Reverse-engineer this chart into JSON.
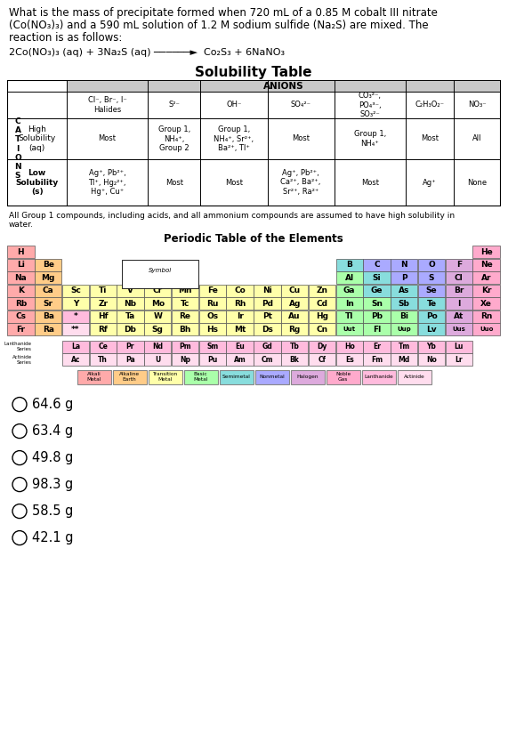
{
  "question_text_lines": [
    "What is the mass of precipitate formed when 720 mL of a 0.85 M cobalt III nitrate",
    "(Co(NO₃)₃) and a 590 mL solution of 1.2 M sodium sulfide (Na₂S) are mixed. The",
    "reaction is as follows:"
  ],
  "reaction_line": "2Co(NO₃)₃ (aq) + 3Na₂S (aq) ──────►  Co₂S₃ + 6NaNO₃",
  "solubility_title": "Solubility Table",
  "anions_header": "ANIONS",
  "col_headers": [
    "Cl⁻, Br⁻, I⁻\nHalides",
    "S²⁻",
    "OH⁻",
    "SO₄²⁻",
    "CO₃²⁻,\nPO₄³⁻,\nSO₃²⁻",
    "C₂H₃O₂⁻",
    "NO₃⁻"
  ],
  "row1_label": "High\nSolubility\n(aq)",
  "row2_label": "Low\nSolubility\n(s)",
  "row1_data": [
    "Most",
    "Group 1,\nNH₄⁺,\nGroup 2",
    "Group 1,\nNH₄⁺, Sr²⁺,\nBa²⁺, Tl⁺",
    "Most",
    "Group 1,\nNH₄⁺",
    "Most",
    "All"
  ],
  "row2_data": [
    "Ag⁺, Pb²⁺,\nTl⁺, Hg₂²⁺,\nHg⁺, Cu⁺",
    "Most",
    "Most",
    "Ag⁺, Pb²⁺,\nCa²⁺, Ba²⁺,\nSr²⁺, Ra²⁺",
    "Most",
    "Ag⁺",
    "None"
  ],
  "footnote_line1": "All Group 1 compounds, including acids, and all ammonium compounds are assumed to have high solubility in",
  "footnote_line2": "water.",
  "answer_options": [
    "64.6 g",
    "63.4 g",
    "49.8 g",
    "98.3 g",
    "58.5 g",
    "42.1 g"
  ],
  "bg_color": "#ffffff",
  "colors": {
    "alkali": "#ffaaaa",
    "alkaline": "#ffcc88",
    "transition": "#ffffaa",
    "basic": "#aaffaa",
    "semimetal": "#88dddd",
    "nonmetal": "#aaaaff",
    "halogen": "#ddaadd",
    "noble": "#ffaacc",
    "lanthanide": "#ffbbdd",
    "actinide": "#ffddee",
    "default": "#ffffff"
  },
  "elements": [
    [
      0,
      0,
      "H",
      "alkali"
    ],
    [
      0,
      17,
      "He",
      "noble"
    ],
    [
      1,
      0,
      "Li",
      "alkali"
    ],
    [
      1,
      1,
      "Be",
      "alkaline"
    ],
    [
      1,
      12,
      "B",
      "semimetal"
    ],
    [
      1,
      13,
      "C",
      "nonmetal"
    ],
    [
      1,
      14,
      "N",
      "nonmetal"
    ],
    [
      1,
      15,
      "O",
      "nonmetal"
    ],
    [
      1,
      16,
      "F",
      "halogen"
    ],
    [
      1,
      17,
      "Ne",
      "noble"
    ],
    [
      2,
      0,
      "Na",
      "alkali"
    ],
    [
      2,
      1,
      "Mg",
      "alkaline"
    ],
    [
      2,
      12,
      "Al",
      "basic"
    ],
    [
      2,
      13,
      "Si",
      "semimetal"
    ],
    [
      2,
      14,
      "P",
      "nonmetal"
    ],
    [
      2,
      15,
      "S",
      "nonmetal"
    ],
    [
      2,
      16,
      "Cl",
      "halogen"
    ],
    [
      2,
      17,
      "Ar",
      "noble"
    ],
    [
      3,
      0,
      "K",
      "alkali"
    ],
    [
      3,
      1,
      "Ca",
      "alkaline"
    ],
    [
      3,
      2,
      "Sc",
      "transition"
    ],
    [
      3,
      3,
      "Ti",
      "transition"
    ],
    [
      3,
      4,
      "V",
      "transition"
    ],
    [
      3,
      5,
      "Cr",
      "transition"
    ],
    [
      3,
      6,
      "Mn",
      "transition"
    ],
    [
      3,
      7,
      "Fe",
      "transition"
    ],
    [
      3,
      8,
      "Co",
      "transition"
    ],
    [
      3,
      9,
      "Ni",
      "transition"
    ],
    [
      3,
      10,
      "Cu",
      "transition"
    ],
    [
      3,
      11,
      "Zn",
      "transition"
    ],
    [
      3,
      12,
      "Ga",
      "basic"
    ],
    [
      3,
      13,
      "Ge",
      "semimetal"
    ],
    [
      3,
      14,
      "As",
      "semimetal"
    ],
    [
      3,
      15,
      "Se",
      "nonmetal"
    ],
    [
      3,
      16,
      "Br",
      "halogen"
    ],
    [
      3,
      17,
      "Kr",
      "noble"
    ],
    [
      4,
      0,
      "Rb",
      "alkali"
    ],
    [
      4,
      1,
      "Sr",
      "alkaline"
    ],
    [
      4,
      2,
      "Y",
      "transition"
    ],
    [
      4,
      3,
      "Zr",
      "transition"
    ],
    [
      4,
      4,
      "Nb",
      "transition"
    ],
    [
      4,
      5,
      "Mo",
      "transition"
    ],
    [
      4,
      6,
      "Tc",
      "transition"
    ],
    [
      4,
      7,
      "Ru",
      "transition"
    ],
    [
      4,
      8,
      "Rh",
      "transition"
    ],
    [
      4,
      9,
      "Pd",
      "transition"
    ],
    [
      4,
      10,
      "Ag",
      "transition"
    ],
    [
      4,
      11,
      "Cd",
      "transition"
    ],
    [
      4,
      12,
      "In",
      "basic"
    ],
    [
      4,
      13,
      "Sn",
      "basic"
    ],
    [
      4,
      14,
      "Sb",
      "semimetal"
    ],
    [
      4,
      15,
      "Te",
      "semimetal"
    ],
    [
      4,
      16,
      "I",
      "halogen"
    ],
    [
      4,
      17,
      "Xe",
      "noble"
    ],
    [
      5,
      0,
      "Cs",
      "alkali"
    ],
    [
      5,
      1,
      "Ba",
      "alkaline"
    ],
    [
      5,
      2,
      "*",
      "lanthanide"
    ],
    [
      5,
      3,
      "Hf",
      "transition"
    ],
    [
      5,
      4,
      "Ta",
      "transition"
    ],
    [
      5,
      5,
      "W",
      "transition"
    ],
    [
      5,
      6,
      "Re",
      "transition"
    ],
    [
      5,
      7,
      "Os",
      "transition"
    ],
    [
      5,
      8,
      "Ir",
      "transition"
    ],
    [
      5,
      9,
      "Pt",
      "transition"
    ],
    [
      5,
      10,
      "Au",
      "transition"
    ],
    [
      5,
      11,
      "Hg",
      "transition"
    ],
    [
      5,
      12,
      "Tl",
      "basic"
    ],
    [
      5,
      13,
      "Pb",
      "basic"
    ],
    [
      5,
      14,
      "Bi",
      "basic"
    ],
    [
      5,
      15,
      "Po",
      "semimetal"
    ],
    [
      5,
      16,
      "At",
      "halogen"
    ],
    [
      5,
      17,
      "Rn",
      "noble"
    ],
    [
      6,
      0,
      "Fr",
      "alkali"
    ],
    [
      6,
      1,
      "Ra",
      "alkaline"
    ],
    [
      6,
      2,
      "**",
      "actinide"
    ],
    [
      6,
      3,
      "Rf",
      "transition"
    ],
    [
      6,
      4,
      "Db",
      "transition"
    ],
    [
      6,
      5,
      "Sg",
      "transition"
    ],
    [
      6,
      6,
      "Bh",
      "transition"
    ],
    [
      6,
      7,
      "Hs",
      "transition"
    ],
    [
      6,
      8,
      "Mt",
      "transition"
    ],
    [
      6,
      9,
      "Ds",
      "transition"
    ],
    [
      6,
      10,
      "Rg",
      "transition"
    ],
    [
      6,
      11,
      "Cn",
      "transition"
    ],
    [
      6,
      12,
      "Uut",
      "basic"
    ],
    [
      6,
      13,
      "Fl",
      "basic"
    ],
    [
      6,
      14,
      "Uup",
      "basic"
    ],
    [
      6,
      15,
      "Lv",
      "semimetal"
    ],
    [
      6,
      16,
      "Uus",
      "halogen"
    ],
    [
      6,
      17,
      "Uuo",
      "noble"
    ]
  ],
  "lanthanides": [
    "La",
    "Ce",
    "Pr",
    "Nd",
    "Pm",
    "Sm",
    "Eu",
    "Gd",
    "Tb",
    "Dy",
    "Ho",
    "Er",
    "Tm",
    "Yb",
    "Lu"
  ],
  "actinides": [
    "Ac",
    "Th",
    "Pa",
    "U",
    "Np",
    "Pu",
    "Am",
    "Cm",
    "Bk",
    "Cf",
    "Es",
    "Fm",
    "Md",
    "No",
    "Lr"
  ],
  "legend_items": [
    [
      "Alkali\nMetal",
      "alkali"
    ],
    [
      "Alkaline\nEarth",
      "alkaline"
    ],
    [
      "Transition\nMetal",
      "transition"
    ],
    [
      "Basic\nMetal",
      "basic"
    ],
    [
      "Semimetal",
      "semimetal"
    ],
    [
      "Nonmetal",
      "nonmetal"
    ],
    [
      "Halogen",
      "halogen"
    ],
    [
      "Noble\nGas",
      "noble"
    ],
    [
      "Lanthanide",
      "lanthanide"
    ],
    [
      "Actinide",
      "actinide"
    ]
  ]
}
